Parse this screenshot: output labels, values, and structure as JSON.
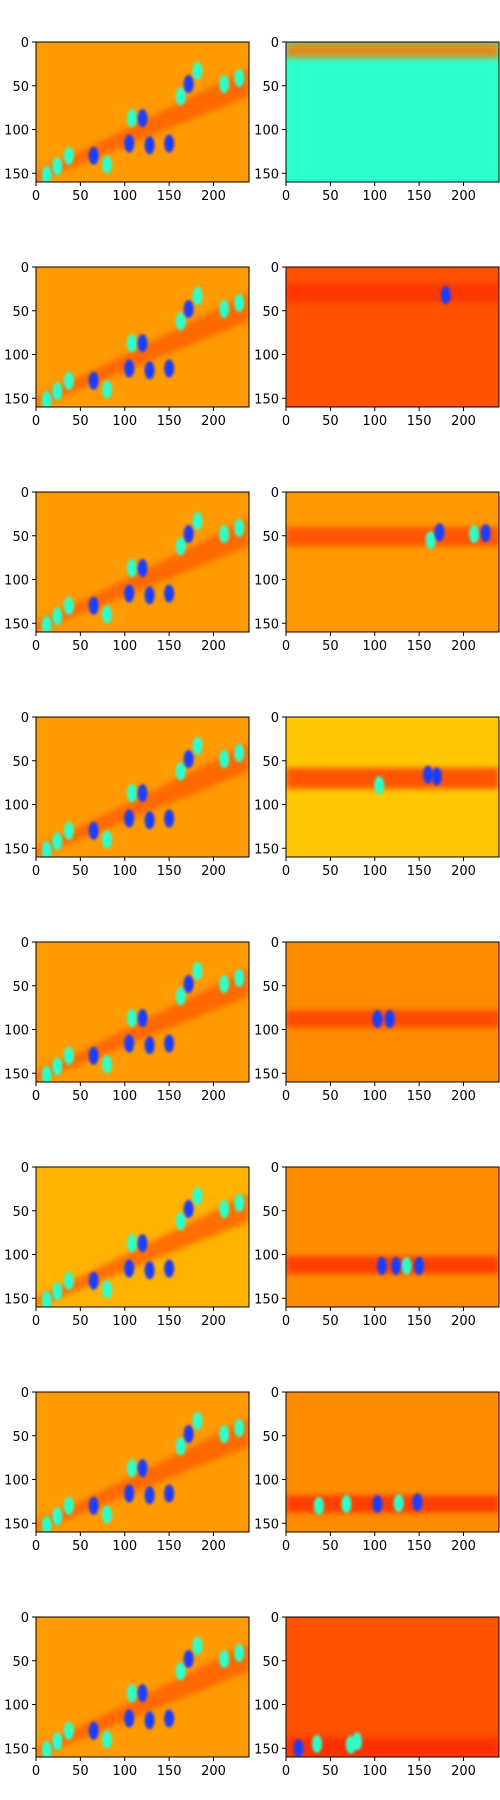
{
  "chart_data": {
    "type": "heatmap",
    "layout": "8 rows x 2 columns of image panels",
    "colormap": "jet",
    "grid": false,
    "x_ticks": [
      "0",
      "50",
      "100",
      "150",
      "200"
    ],
    "y_ticks": [
      "0",
      "50",
      "100",
      "150"
    ],
    "xlim": [
      0,
      240
    ],
    "ylim": [
      160,
      0
    ],
    "rows": [
      {
        "left": {
          "background": "#ff9a00",
          "band": {
            "y0": 40,
            "y1": 140,
            "color": "#ff5a00"
          },
          "blobs": []
        },
        "right": {
          "background": "#2dffc8",
          "band": {
            "y0": 0,
            "y1": 18,
            "color": "#ff7a00"
          },
          "blobs": []
        }
      },
      {
        "left": {
          "background": "#ff9a00",
          "band": {
            "y0": 40,
            "y1": 140,
            "color": "#ff5a00"
          },
          "blobs": []
        },
        "right": {
          "background": "#ff5200",
          "band": {
            "y0": 18,
            "y1": 40,
            "color": "#ff3000"
          },
          "blobs": [
            [
              180,
              32,
              "#1a3cff"
            ]
          ]
        }
      },
      {
        "left": {
          "background": "#ff9a00",
          "band": {
            "y0": 40,
            "y1": 140,
            "color": "#ff5a00"
          },
          "blobs": []
        },
        "right": {
          "background": "#ff9a00",
          "band": {
            "y0": 40,
            "y1": 62,
            "color": "#ff4a00"
          },
          "blobs": [
            [
              163,
              55,
              "#2dffc8"
            ],
            [
              173,
              46,
              "#1a3cff"
            ],
            [
              212,
              48,
              "#2dffc8"
            ],
            [
              225,
              47,
              "#1a3cff"
            ]
          ]
        }
      },
      {
        "left": {
          "background": "#ff9a00",
          "band": {
            "y0": 40,
            "y1": 140,
            "color": "#ff5a00"
          },
          "blobs": []
        },
        "right": {
          "background": "#ffc800",
          "band": {
            "y0": 58,
            "y1": 82,
            "color": "#ff4000"
          },
          "blobs": [
            [
              105,
              78,
              "#2dffc8"
            ],
            [
              160,
              66,
              "#1a3cff"
            ],
            [
              170,
              68,
              "#1a3cff"
            ]
          ]
        }
      },
      {
        "left": {
          "background": "#ff9a00",
          "band": {
            "y0": 40,
            "y1": 140,
            "color": "#ff5a00"
          },
          "blobs": []
        },
        "right": {
          "background": "#ff8c00",
          "band": {
            "y0": 78,
            "y1": 98,
            "color": "#ff4000"
          },
          "blobs": [
            [
              103,
              88,
              "#1a3cff"
            ],
            [
              117,
              88,
              "#1a3cff"
            ]
          ]
        }
      },
      {
        "left": {
          "background": "#ffb300",
          "band": {
            "y0": 40,
            "y1": 140,
            "color": "#ff5a00"
          },
          "blobs": []
        },
        "right": {
          "background": "#ff8c00",
          "band": {
            "y0": 102,
            "y1": 122,
            "color": "#ff3000"
          },
          "blobs": [
            [
              108,
              113,
              "#1a3cff"
            ],
            [
              124,
              113,
              "#1a3cff"
            ],
            [
              136,
              113,
              "#2dffc8"
            ],
            [
              150,
              113,
              "#1a3cff"
            ]
          ]
        }
      },
      {
        "left": {
          "background": "#ff9a00",
          "band": {
            "y0": 40,
            "y1": 140,
            "color": "#ff5a00"
          },
          "blobs": []
        },
        "right": {
          "background": "#ff8c00",
          "band": {
            "y0": 118,
            "y1": 138,
            "color": "#ff3000"
          },
          "blobs": [
            [
              37,
              130,
              "#2dffc8"
            ],
            [
              68,
              128,
              "#2dffc8"
            ],
            [
              103,
              128,
              "#1a3cff"
            ],
            [
              127,
              127,
              "#2dffc8"
            ],
            [
              148,
              126,
              "#1a3cff"
            ]
          ]
        }
      },
      {
        "left": {
          "background": "#ff9a00",
          "band": {
            "y0": 40,
            "y1": 140,
            "color": "#ff5a00"
          },
          "blobs": []
        },
        "right": {
          "background": "#ff5200",
          "band": {
            "y0": 138,
            "y1": 160,
            "color": "#ff2a00"
          },
          "blobs": [
            [
              14,
              150,
              "#1a3cff"
            ],
            [
              35,
              145,
              "#2dffc8"
            ],
            [
              73,
              146,
              "#2dffc8"
            ],
            [
              80,
              142,
              "#2dffc8"
            ]
          ]
        }
      }
    ],
    "left_blobs_common": [
      [
        12,
        152,
        "#2dffc8"
      ],
      [
        24,
        142,
        "#2dffc8"
      ],
      [
        37,
        130,
        "#2dffc8"
      ],
      [
        65,
        130,
        "#1a3cff"
      ],
      [
        80,
        140,
        "#2dffc8"
      ],
      [
        105,
        116,
        "#1a3cff"
      ],
      [
        108,
        87,
        "#2dffc8"
      ],
      [
        120,
        87,
        "#1a3cff"
      ],
      [
        128,
        118,
        "#1a3cff"
      ],
      [
        150,
        116,
        "#1a3cff"
      ],
      [
        163,
        62,
        "#2dffc8"
      ],
      [
        172,
        48,
        "#1a3cff"
      ],
      [
        182,
        33,
        "#2dffc8"
      ],
      [
        212,
        48,
        "#2dffc8"
      ],
      [
        229,
        41,
        "#2dffc8"
      ]
    ]
  }
}
